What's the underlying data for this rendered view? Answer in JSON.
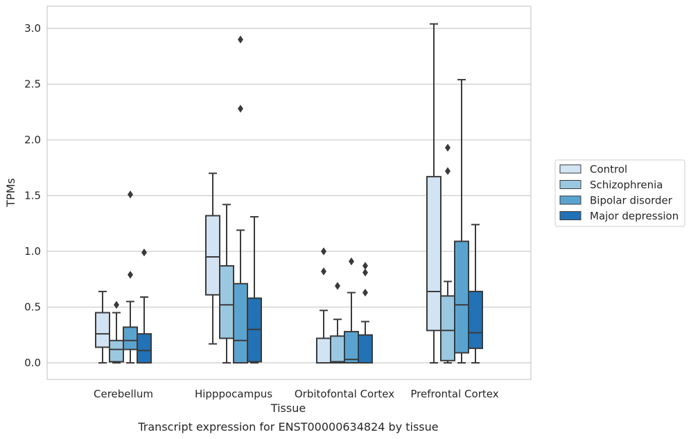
{
  "chart_data": {
    "type": "box",
    "title": "",
    "caption": "Transcript expression for ENST00000634824 by tissue",
    "xlabel": "Tissue",
    "ylabel": "TPMs",
    "ylim": [
      -0.15,
      3.2
    ],
    "yticks": [
      0.0,
      0.5,
      1.0,
      1.5,
      2.0,
      2.5,
      3.0
    ],
    "ytick_labels": [
      "0.0",
      "0.5",
      "1.0",
      "1.5",
      "2.0",
      "2.5",
      "3.0"
    ],
    "grid": "horizontal",
    "legend_position": "right",
    "categories": [
      "Cerebellum",
      "Hipppocampus",
      "Orbitofontal Cortex",
      "Prefrontal Cortex"
    ],
    "series": [
      {
        "name": "Control",
        "color": "#d2e3f3",
        "boxes": [
          {
            "whislo": 0.0,
            "q1": 0.14,
            "med": 0.26,
            "q3": 0.45,
            "whishi": 0.64,
            "fliers": []
          },
          {
            "whislo": 0.17,
            "q1": 0.61,
            "med": 0.95,
            "q3": 1.32,
            "whishi": 1.7,
            "fliers": []
          },
          {
            "whislo": 0.0,
            "q1": 0.0,
            "med": 0.0,
            "q3": 0.22,
            "whishi": 0.47,
            "fliers": [
              0.82,
              1.0
            ]
          },
          {
            "whislo": 0.0,
            "q1": 0.29,
            "med": 0.64,
            "q3": 1.67,
            "whishi": 3.04,
            "fliers": []
          }
        ]
      },
      {
        "name": "Schizophrenia",
        "color": "#9ac8e0",
        "boxes": [
          {
            "whislo": 0.0,
            "q1": 0.01,
            "med": 0.12,
            "q3": 0.2,
            "whishi": 0.45,
            "fliers": [
              0.52
            ]
          },
          {
            "whislo": 0.0,
            "q1": 0.22,
            "med": 0.52,
            "q3": 0.87,
            "whishi": 1.42,
            "fliers": []
          },
          {
            "whislo": 0.0,
            "q1": 0.0,
            "med": 0.01,
            "q3": 0.24,
            "whishi": 0.39,
            "fliers": [
              0.69
            ]
          },
          {
            "whislo": 0.0,
            "q1": 0.02,
            "med": 0.29,
            "q3": 0.6,
            "whishi": 0.73,
            "fliers": [
              1.72,
              1.93
            ]
          }
        ]
      },
      {
        "name": "Bipolar disorder",
        "color": "#5ba3cf",
        "boxes": [
          {
            "whislo": 0.0,
            "q1": 0.12,
            "med": 0.2,
            "q3": 0.32,
            "whishi": 0.55,
            "fliers": [
              0.79,
              1.51
            ]
          },
          {
            "whislo": 0.0,
            "q1": 0.0,
            "med": 0.2,
            "q3": 0.71,
            "whishi": 1.19,
            "fliers": [
              2.28,
              2.9
            ]
          },
          {
            "whislo": 0.0,
            "q1": 0.0,
            "med": 0.03,
            "q3": 0.28,
            "whishi": 0.63,
            "fliers": [
              0.91
            ]
          },
          {
            "whislo": 0.0,
            "q1": 0.09,
            "med": 0.52,
            "q3": 1.09,
            "whishi": 2.54,
            "fliers": []
          }
        ]
      },
      {
        "name": "Major depression",
        "color": "#2272b5",
        "boxes": [
          {
            "whislo": 0.0,
            "q1": 0.0,
            "med": 0.11,
            "q3": 0.26,
            "whishi": 0.59,
            "fliers": [
              0.99
            ]
          },
          {
            "whislo": 0.0,
            "q1": 0.01,
            "med": 0.3,
            "q3": 0.58,
            "whishi": 1.31,
            "fliers": []
          },
          {
            "whislo": 0.0,
            "q1": 0.0,
            "med": 0.0,
            "q3": 0.25,
            "whishi": 0.37,
            "fliers": [
              0.63,
              0.81,
              0.87
            ]
          },
          {
            "whislo": 0.0,
            "q1": 0.13,
            "med": 0.27,
            "q3": 0.64,
            "whishi": 1.24,
            "fliers": []
          }
        ]
      }
    ]
  }
}
